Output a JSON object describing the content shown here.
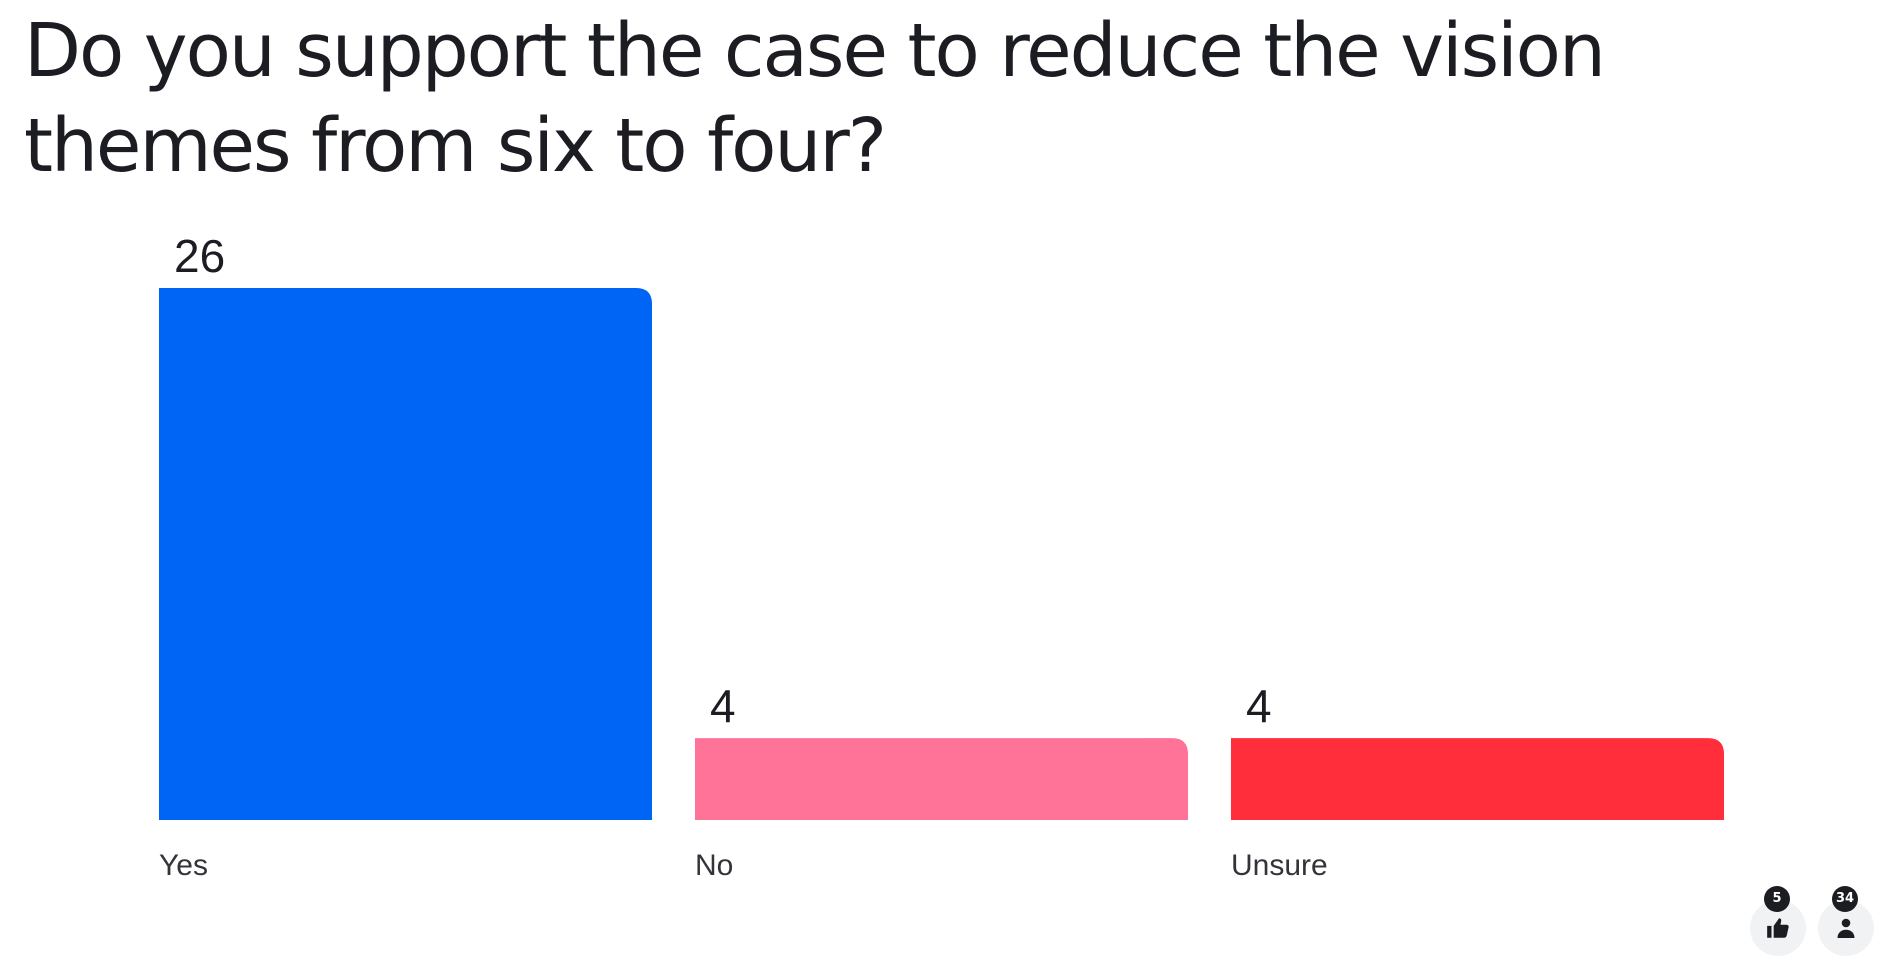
{
  "question": "Do you support the case to reduce the vision themes from six to four?",
  "chart_data": {
    "type": "bar",
    "title": "Do you support the case to reduce the vision themes from six to four?",
    "categories": [
      "Yes",
      "No",
      "Unsure"
    ],
    "values": [
      26,
      4,
      4
    ],
    "colors": [
      "#0064f5",
      "#ff7398",
      "#ff2e3a"
    ],
    "ylim": [
      0,
      26
    ],
    "grid": false,
    "legend": "none",
    "show_value_labels": true
  },
  "footer": {
    "reactions_count": "5",
    "reactions_icon": "thumbs-up-icon",
    "participants_count": "34",
    "participants_icon": "person-icon"
  }
}
